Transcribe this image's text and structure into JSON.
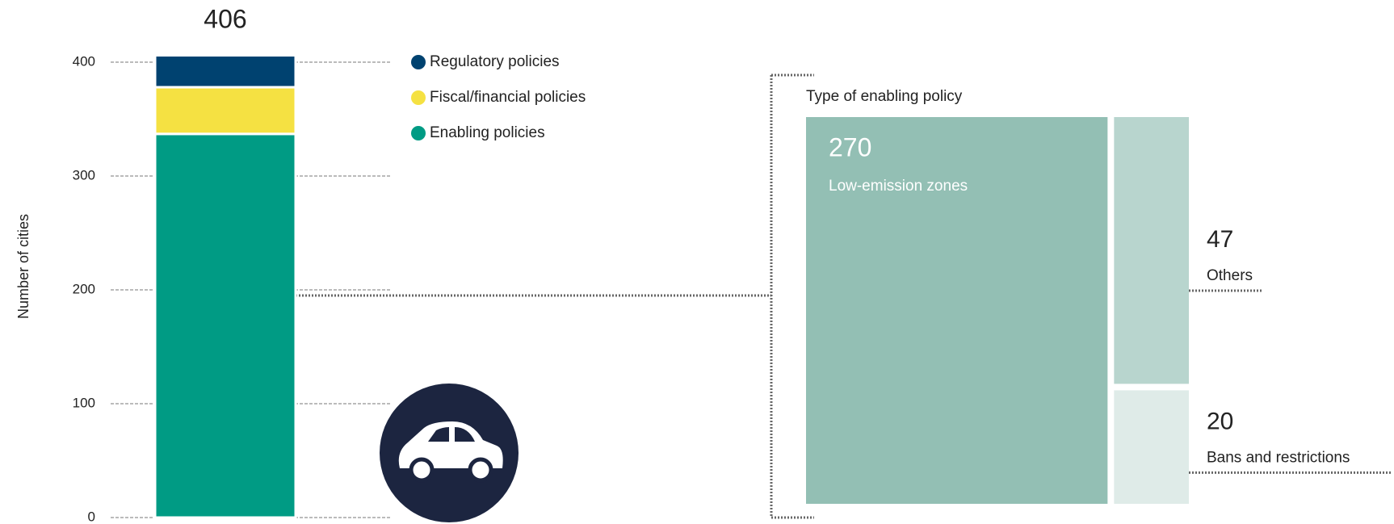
{
  "chart_data": [
    {
      "type": "stacked-bar",
      "ylabel": "Number of cities",
      "total": 406,
      "ylim": [
        0,
        400
      ],
      "yticks": [
        0,
        100,
        200,
        300,
        400
      ],
      "series": [
        {
          "name": "Enabling policies",
          "color": "#009b84",
          "values": [
            337
          ]
        },
        {
          "name": "Fiscal/financial policies",
          "color": "#f5e142",
          "values": [
            41
          ]
        },
        {
          "name": "Regulatory policies",
          "color": "#004270",
          "values": [
            28
          ]
        }
      ]
    },
    {
      "type": "treemap",
      "title": "Type of enabling policy",
      "categories": [
        "Low-emission zones",
        "Others",
        "Bans and restrictions"
      ],
      "values": [
        270,
        47,
        20
      ],
      "colors": [
        "#93bfb4",
        "#b8d5ce",
        "#dfebe8"
      ]
    }
  ]
}
